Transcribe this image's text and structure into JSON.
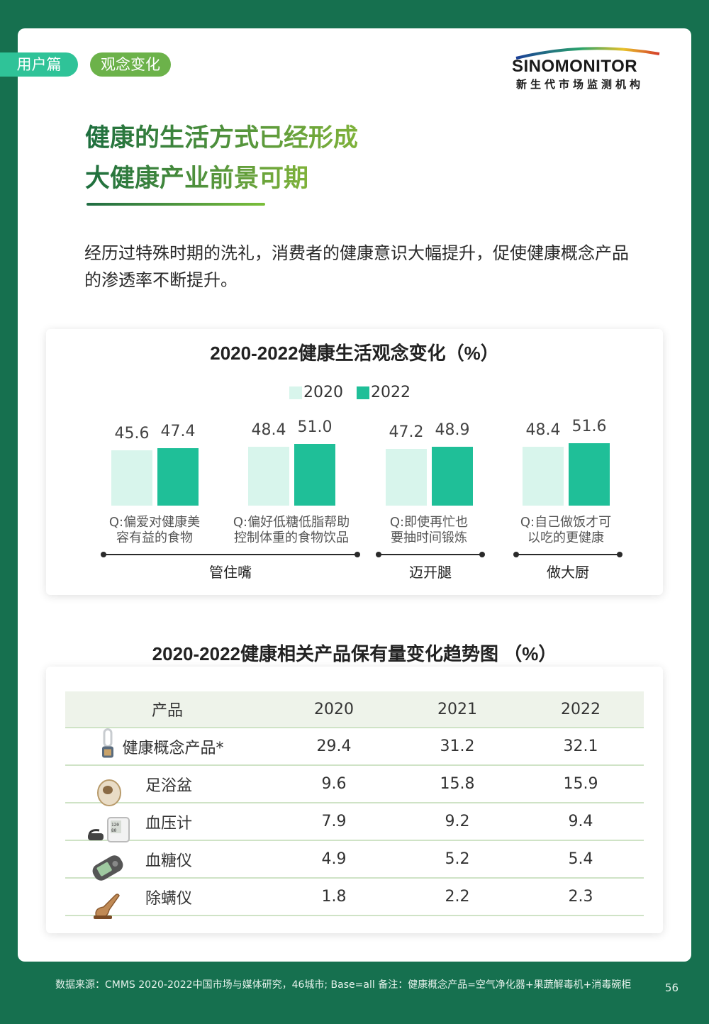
{
  "tags": {
    "user": "用户篇",
    "concept": "观念变化"
  },
  "logo": {
    "main": "SINOMONITOR",
    "sub": "新生代市场监测机构"
  },
  "headline": {
    "line1": "健康的生活方式已经形成",
    "line2": "大健康产业前景可期"
  },
  "intro": "经历过特殊时期的洗礼，消费者的健康意识大幅提升，促使健康概念产品的渗透率不断提升。",
  "colors": {
    "light": "#d8f5ec",
    "dark": "#1fbf98",
    "background": "#16704f"
  },
  "chart_data": {
    "type": "bar",
    "title": "2020-2022健康生活观念变化（%）",
    "legend": [
      "2020",
      "2022"
    ],
    "categories": [
      "Q:偏爱对健康美容有益的食物",
      "Q:偏好低糖低脂帮助控制体重的食物饮品",
      "Q:即使再忙也要抽时间锻炼",
      "Q:自己做饭才可以吃的更健康"
    ],
    "category_lines": [
      [
        "Q:偏爱对健康美",
        "容有益的食物"
      ],
      [
        "Q:偏好低糖低脂帮助",
        "控制体重的食物饮品"
      ],
      [
        "Q:即使再忙也",
        "要抽时间锻炼"
      ],
      [
        "Q:自己做饭才可",
        "以吃的更健康"
      ]
    ],
    "series": [
      {
        "name": "2020",
        "values": [
          45.6,
          48.4,
          47.2,
          48.4
        ],
        "labels": [
          "45.6",
          "48.4",
          "47.2",
          "48.4"
        ]
      },
      {
        "name": "2022",
        "values": [
          47.4,
          51.0,
          48.9,
          51.6
        ],
        "labels": [
          "47.4",
          "51.0",
          "48.9",
          "51.6"
        ]
      }
    ],
    "groups": [
      "管住嘴",
      "迈开腿",
      "做大厨"
    ]
  },
  "table": {
    "title": "2020-2022健康相关产品保有量变化趋势图 （%）",
    "headers": [
      "产品",
      "2020",
      "2021",
      "2022"
    ],
    "rows": [
      {
        "name": "健康概念产品*",
        "icon": "air-purifier-icon",
        "values": [
          "29.4",
          "31.2",
          "32.1"
        ]
      },
      {
        "name": "足浴盆",
        "icon": "foot-bath-icon",
        "values": [
          "9.6",
          "15.8",
          "15.9"
        ]
      },
      {
        "name": "血压计",
        "icon": "blood-pressure-monitor-icon",
        "values": [
          "7.9",
          "9.2",
          "9.4"
        ]
      },
      {
        "name": "血糖仪",
        "icon": "glucose-meter-icon",
        "values": [
          "4.9",
          "5.2",
          "5.4"
        ]
      },
      {
        "name": "除螨仪",
        "icon": "mite-remover-icon",
        "values": [
          "1.8",
          "2.2",
          "2.3"
        ]
      }
    ]
  },
  "footer": "数据来源：CMMS 2020-2022中国市场与媒体研究，46城市; Base=all 备注：健康概念产品=空气净化器+果蔬解毒机+消毒碗柜",
  "page_number": "56"
}
